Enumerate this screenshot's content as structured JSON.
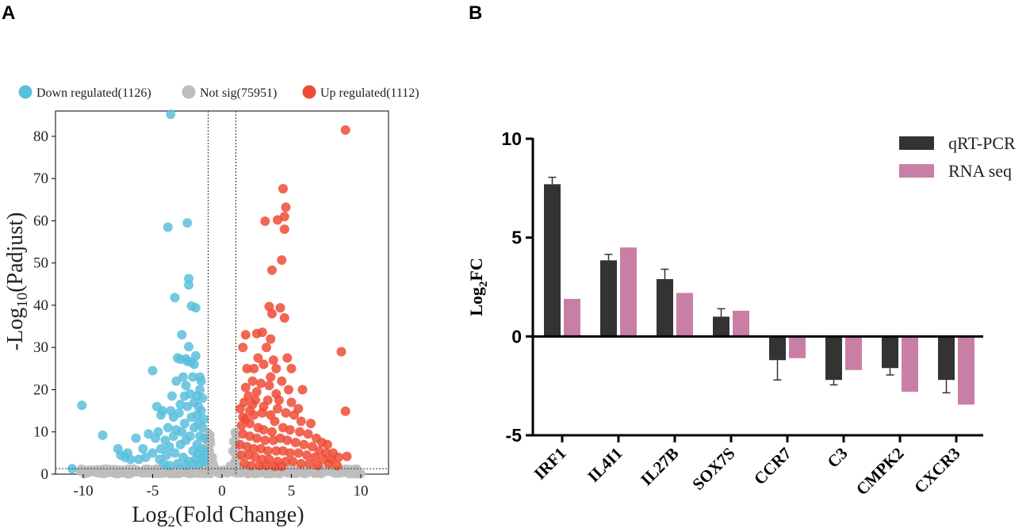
{
  "panel_labels": {
    "a": "A",
    "b": "B"
  },
  "colors": {
    "down": "#5bc0dc",
    "notsig": "#bdbdbd",
    "up": "#ee4c36",
    "qrt": "#333333",
    "rnaseq": "#c97fa5"
  },
  "chart_data": [
    {
      "type": "scatter",
      "title": "",
      "xlabel": "Log2(Fold Change)",
      "xlabel_main": "Log",
      "xlabel_sub": "2",
      "xlabel_rest": "(Fold Change)",
      "ylabel_main": "-Log",
      "ylabel_sub": "10",
      "ylabel_rest": "(Padjust)",
      "xlim": [
        -12,
        12
      ],
      "ylim": [
        0,
        86
      ],
      "x_ticks": [
        -10,
        -5,
        0,
        5,
        10
      ],
      "x_tick_labels": [
        "-10",
        "-5",
        "0",
        "5",
        "10"
      ],
      "y_ticks": [
        0,
        10,
        20,
        30,
        40,
        50,
        60,
        70,
        80
      ],
      "y_tick_labels": [
        "0",
        "10",
        "20",
        "30",
        "40",
        "50",
        "60",
        "70",
        "80"
      ],
      "thresholds": {
        "x": [
          -1,
          1
        ],
        "y": 1.3
      },
      "legend": [
        {
          "key": "down",
          "label": "Down regulated(1126)"
        },
        {
          "key": "notsig",
          "label": "Not sig(75951)"
        },
        {
          "key": "up",
          "label": "Up regulated(1112)"
        }
      ],
      "series": [
        {
          "name": "Down regulated",
          "key": "down",
          "points": [
            [
              -3.7,
              85.2
            ],
            [
              -2.5,
              59.5
            ],
            [
              -3.9,
              58.5
            ],
            [
              -2.4,
              46.3
            ],
            [
              -2.4,
              44.8
            ],
            [
              -3.4,
              41.8
            ],
            [
              -2.2,
              39.8
            ],
            [
              -1.9,
              39.4
            ],
            [
              -2.9,
              33.0
            ],
            [
              -2.4,
              30.2
            ],
            [
              -5.0,
              24.5
            ],
            [
              -3.2,
              27.5
            ],
            [
              -3.0,
              27.2
            ],
            [
              -2.6,
              27.3
            ],
            [
              -2.5,
              26.7
            ],
            [
              -2.2,
              26.5
            ],
            [
              -1.9,
              28.0
            ],
            [
              -2.0,
              26.0
            ],
            [
              -3.3,
              22.0
            ],
            [
              -2.8,
              23.0
            ],
            [
              -2.1,
              23.0
            ],
            [
              -1.6,
              23.0
            ],
            [
              -1.5,
              22.0
            ],
            [
              -2.6,
              21.0
            ],
            [
              -3.6,
              18.5
            ],
            [
              -4.7,
              16.0
            ],
            [
              -4.3,
              15.0
            ],
            [
              -3.7,
              15.0
            ],
            [
              -4.4,
              14.0
            ],
            [
              -3.5,
              13.5
            ],
            [
              -3.1,
              14.5
            ],
            [
              -3.9,
              11.0
            ],
            [
              -3.3,
              10.5
            ],
            [
              -5.3,
              9.5
            ],
            [
              -4.6,
              10.0
            ],
            [
              -4.8,
              8.5
            ],
            [
              -6.2,
              8.5
            ],
            [
              -5.7,
              6.0
            ],
            [
              -6.8,
              5.0
            ],
            [
              -7.3,
              4.5
            ],
            [
              -7.5,
              6.0
            ],
            [
              -7.0,
              4.0
            ],
            [
              -6.6,
              3.5
            ],
            [
              -6.0,
              3.5
            ],
            [
              -5.5,
              4.0
            ],
            [
              -5.0,
              5.0
            ],
            [
              -4.5,
              3.5
            ],
            [
              -4.0,
              4.5
            ],
            [
              -3.4,
              5.0
            ],
            [
              -2.8,
              4.0
            ],
            [
              -3.0,
              7.0
            ],
            [
              -2.6,
              8.0
            ],
            [
              -2.3,
              9.0
            ],
            [
              -2.7,
              12.0
            ],
            [
              -2.2,
              13.5
            ],
            [
              -2.5,
              16.0
            ],
            [
              -2.0,
              17.0
            ],
            [
              -1.8,
              18.5
            ],
            [
              -1.6,
              20.0
            ],
            [
              -1.4,
              18.0
            ],
            [
              -1.5,
              15.0
            ],
            [
              -1.3,
              13.0
            ],
            [
              -1.7,
              12.0
            ],
            [
              -1.4,
              11.0
            ],
            [
              -1.6,
              9.0
            ],
            [
              -1.3,
              8.5
            ],
            [
              -1.8,
              7.0
            ],
            [
              -1.5,
              6.0
            ],
            [
              -1.3,
              5.5
            ],
            [
              -1.7,
              5.0
            ],
            [
              -2.1,
              5.5
            ],
            [
              -1.4,
              4.0
            ],
            [
              -1.9,
              3.5
            ],
            [
              -2.4,
              3.0
            ],
            [
              -1.3,
              3.0
            ],
            [
              -1.6,
              2.5
            ],
            [
              -2.0,
              2.5
            ],
            [
              -2.6,
              2.0
            ],
            [
              -3.2,
              2.5
            ],
            [
              -3.8,
              2.0
            ],
            [
              -4.2,
              2.5
            ],
            [
              -2.9,
              10.0
            ],
            [
              -3.5,
              9.0
            ],
            [
              -4.1,
              8.0
            ],
            [
              -2.0,
              11.0
            ],
            [
              -1.8,
              14.0
            ],
            [
              -2.3,
              19.0
            ],
            [
              -1.7,
              16.0
            ],
            [
              -8.6,
              9.2
            ],
            [
              -10.1,
              16.3
            ],
            [
              -10.8,
              1.3
            ],
            [
              -3.0,
              16.5
            ],
            [
              -2.7,
              18.5
            ],
            [
              -3.8,
              6.5
            ],
            [
              -4.4,
              6.0
            ]
          ]
        },
        {
          "name": "Up regulated",
          "key": "up",
          "points": [
            [
              8.9,
              81.5
            ],
            [
              4.4,
              67.6
            ],
            [
              4.6,
              63.2
            ],
            [
              4.5,
              61.0
            ],
            [
              3.1,
              59.9
            ],
            [
              4.0,
              60.2
            ],
            [
              4.5,
              58.0
            ],
            [
              4.3,
              50.7
            ],
            [
              3.6,
              48.3
            ],
            [
              4.2,
              39.4
            ],
            [
              3.4,
              39.7
            ],
            [
              3.6,
              38.0
            ],
            [
              4.5,
              37.0
            ],
            [
              2.5,
              33.3
            ],
            [
              2.9,
              33.6
            ],
            [
              1.7,
              33.0
            ],
            [
              3.5,
              32.0
            ],
            [
              3.2,
              30.0
            ],
            [
              1.5,
              30.0
            ],
            [
              2.6,
              27.5
            ],
            [
              3.7,
              27.0
            ],
            [
              3.0,
              26.0
            ],
            [
              1.8,
              25.0
            ],
            [
              3.9,
              25.0
            ],
            [
              5.0,
              25.0
            ],
            [
              4.3,
              22.0
            ],
            [
              8.6,
              29.0
            ],
            [
              5.8,
              20.0
            ],
            [
              1.7,
              20.5
            ],
            [
              2.5,
              19.5
            ],
            [
              3.3,
              17.5
            ],
            [
              4.1,
              17.5
            ],
            [
              1.6,
              17.0
            ],
            [
              2.2,
              16.5
            ],
            [
              1.3,
              15.5
            ],
            [
              1.7,
              13.0
            ],
            [
              2.3,
              14.0
            ],
            [
              2.9,
              14.5
            ],
            [
              3.5,
              14.0
            ],
            [
              4.6,
              14.5
            ],
            [
              8.9,
              14.9
            ],
            [
              5.2,
              14.0
            ],
            [
              5.7,
              12.5
            ],
            [
              6.4,
              12.0
            ],
            [
              3.8,
              12.5
            ],
            [
              2.0,
              12.0
            ],
            [
              1.4,
              11.5
            ],
            [
              2.6,
              11.0
            ],
            [
              3.0,
              10.5
            ],
            [
              3.6,
              10.0
            ],
            [
              4.4,
              11.0
            ],
            [
              4.9,
              10.5
            ],
            [
              5.6,
              10.0
            ],
            [
              6.2,
              9.5
            ],
            [
              6.8,
              8.5
            ],
            [
              7.2,
              7.5
            ],
            [
              7.6,
              7.0
            ],
            [
              1.5,
              9.5
            ],
            [
              2.0,
              9.0
            ],
            [
              2.5,
              8.5
            ],
            [
              3.1,
              8.0
            ],
            [
              3.7,
              8.0
            ],
            [
              4.2,
              8.5
            ],
            [
              4.7,
              8.0
            ],
            [
              5.3,
              7.5
            ],
            [
              5.9,
              7.0
            ],
            [
              6.5,
              6.5
            ],
            [
              7.0,
              5.5
            ],
            [
              7.5,
              5.0
            ],
            [
              8.0,
              5.0
            ],
            [
              1.3,
              7.0
            ],
            [
              1.8,
              6.5
            ],
            [
              2.3,
              6.0
            ],
            [
              2.8,
              6.0
            ],
            [
              3.3,
              5.5
            ],
            [
              3.9,
              5.5
            ],
            [
              4.4,
              5.5
            ],
            [
              4.9,
              5.0
            ],
            [
              5.5,
              5.0
            ],
            [
              6.1,
              4.5
            ],
            [
              6.7,
              4.0
            ],
            [
              7.3,
              3.5
            ],
            [
              7.9,
              3.5
            ],
            [
              8.4,
              4.0
            ],
            [
              9.0,
              4.2
            ],
            [
              1.4,
              4.5
            ],
            [
              1.9,
              4.5
            ],
            [
              2.4,
              4.0
            ],
            [
              2.9,
              3.5
            ],
            [
              3.4,
              3.5
            ],
            [
              4.0,
              3.0
            ],
            [
              4.6,
              3.0
            ],
            [
              5.1,
              3.0
            ],
            [
              5.7,
              2.5
            ],
            [
              6.3,
              2.5
            ],
            [
              6.9,
              2.0
            ],
            [
              7.7,
              2.5
            ],
            [
              8.3,
              2.0
            ],
            [
              1.6,
              2.5
            ],
            [
              2.1,
              2.0
            ],
            [
              2.7,
              2.0
            ],
            [
              3.2,
              2.0
            ],
            [
              3.8,
              1.8
            ],
            [
              4.3,
              1.8
            ],
            [
              2.2,
              22.0
            ],
            [
              2.8,
              21.5
            ],
            [
              3.4,
              21.0
            ],
            [
              1.9,
              18.5
            ],
            [
              2.4,
              17.5
            ],
            [
              3.0,
              16.0
            ],
            [
              1.5,
              13.5
            ],
            [
              2.0,
              15.0
            ],
            [
              5.0,
              17.0
            ],
            [
              5.5,
              15.5
            ],
            [
              4.0,
              15.5
            ],
            [
              4.8,
              20.0
            ],
            [
              3.9,
              19.0
            ],
            [
              3.5,
              23.0
            ],
            [
              2.3,
              25.0
            ],
            [
              4.7,
              27.5
            ]
          ]
        }
      ]
    },
    {
      "type": "bar",
      "title": "",
      "xlabel": "",
      "ylabel_main": "Log",
      "ylabel_sub": "2",
      "ylabel_rest": "FC",
      "ylim": [
        -5,
        10
      ],
      "y_ticks": [
        -5,
        0,
        5,
        10
      ],
      "y_tick_labels": [
        "-5",
        "0",
        "5",
        "10"
      ],
      "categories": [
        "IRF1",
        "IL4I1",
        "IL27B",
        "SOX7S",
        "CCR7",
        "C3",
        "CMPK2",
        "CXCR3"
      ],
      "legend": [
        {
          "key": "qrt",
          "label": "qRT-PCR"
        },
        {
          "key": "rnaseq",
          "label": "RNA seq"
        }
      ],
      "series": [
        {
          "name": "qRT-PCR",
          "key": "qrt",
          "values": [
            7.7,
            3.85,
            2.9,
            1.0,
            -1.2,
            -2.2,
            -1.6,
            -2.2
          ],
          "errors": [
            0.35,
            0.3,
            0.5,
            0.4,
            1.0,
            0.25,
            0.35,
            0.65
          ]
        },
        {
          "name": "RNA seq",
          "key": "rnaseq",
          "values": [
            1.9,
            4.5,
            2.2,
            1.3,
            -1.1,
            -1.7,
            -2.8,
            -3.45
          ]
        }
      ]
    }
  ]
}
